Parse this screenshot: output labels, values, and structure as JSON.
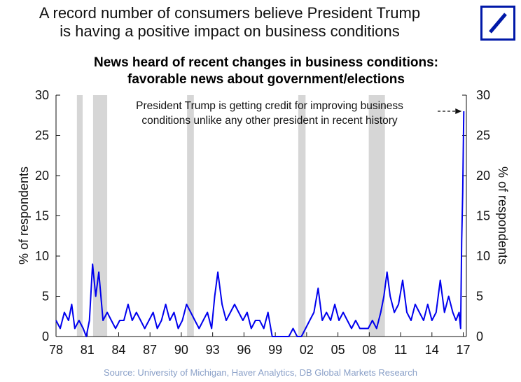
{
  "headline": {
    "line1": "A record number of consumers believe President Trump",
    "line2": "is having a positive impact on business conditions"
  },
  "logo": {
    "name": "Deutsche Bank logo",
    "color": "#0018A8"
  },
  "chart_data": {
    "type": "line",
    "title_line1": "News heard of recent changes in business conditions:",
    "title_line2": "favorable news about government/elections",
    "ylabel_left": "% of respondents",
    "ylabel_right": "% of respondents",
    "ylim": [
      0,
      30
    ],
    "y_ticks": [
      "0",
      "5",
      "10",
      "15",
      "20",
      "25",
      "30"
    ],
    "xlim": [
      1978,
      2017.3
    ],
    "x_ticks": [
      {
        "label": "78",
        "year": 1978
      },
      {
        "label": "81",
        "year": 1981
      },
      {
        "label": "84",
        "year": 1984
      },
      {
        "label": "87",
        "year": 1987
      },
      {
        "label": "90",
        "year": 1990
      },
      {
        "label": "93",
        "year": 1993
      },
      {
        "label": "96",
        "year": 1996
      },
      {
        "label": "99",
        "year": 1999
      },
      {
        "label": "02",
        "year": 2002
      },
      {
        "label": "05",
        "year": 2005
      },
      {
        "label": "08",
        "year": 2008
      },
      {
        "label": "11",
        "year": 2011
      },
      {
        "label": "14",
        "year": 2014
      },
      {
        "label": "17",
        "year": 2017
      }
    ],
    "recessions": [
      {
        "start": 1980.0,
        "end": 1980.55
      },
      {
        "start": 1981.55,
        "end": 1982.9
      },
      {
        "start": 1990.55,
        "end": 1991.2
      },
      {
        "start": 2001.2,
        "end": 2001.9
      },
      {
        "start": 2007.95,
        "end": 2009.5
      }
    ],
    "series": [
      {
        "name": "Favorable news about government/elections",
        "color": "#0000ee",
        "x": [
          1978.0,
          1978.4,
          1978.8,
          1979.2,
          1979.5,
          1979.8,
          1980.2,
          1980.6,
          1980.9,
          1981.2,
          1981.5,
          1981.8,
          1982.1,
          1982.5,
          1982.9,
          1983.3,
          1983.7,
          1984.1,
          1984.5,
          1984.9,
          1985.3,
          1985.7,
          1986.1,
          1986.5,
          1986.9,
          1987.3,
          1987.7,
          1988.1,
          1988.5,
          1988.9,
          1989.3,
          1989.7,
          1990.1,
          1990.5,
          1990.9,
          1991.3,
          1991.7,
          1992.1,
          1992.5,
          1992.9,
          1993.2,
          1993.5,
          1993.9,
          1994.3,
          1994.7,
          1995.1,
          1995.5,
          1995.9,
          1996.3,
          1996.7,
          1997.1,
          1997.5,
          1997.9,
          1998.3,
          1998.7,
          1999.1,
          1999.5,
          1999.9,
          2000.3,
          2000.7,
          2001.1,
          2001.5,
          2001.9,
          2002.3,
          2002.7,
          2003.1,
          2003.5,
          2003.9,
          2004.3,
          2004.7,
          2005.1,
          2005.5,
          2005.9,
          2006.3,
          2006.7,
          2007.1,
          2007.5,
          2007.9,
          2008.3,
          2008.7,
          2009.1,
          2009.4,
          2009.7,
          2010.0,
          2010.4,
          2010.8,
          2011.2,
          2011.6,
          2012.0,
          2012.4,
          2012.8,
          2013.2,
          2013.6,
          2014.0,
          2014.4,
          2014.8,
          2015.2,
          2015.6,
          2016.0,
          2016.3,
          2016.6,
          2016.75,
          2016.85,
          2016.95,
          2017.05
        ],
        "values": [
          2,
          1,
          3,
          2,
          4,
          1,
          2,
          1,
          0,
          2,
          9,
          5,
          8,
          2,
          3,
          2,
          1,
          2,
          2,
          4,
          2,
          3,
          2,
          1,
          2,
          3,
          1,
          2,
          4,
          2,
          3,
          1,
          2,
          4,
          3,
          2,
          1,
          2,
          3,
          1,
          5,
          8,
          4,
          2,
          3,
          4,
          3,
          2,
          3,
          1,
          2,
          2,
          1,
          3,
          0,
          0,
          0,
          0,
          0,
          1,
          0,
          0,
          1,
          2,
          3,
          6,
          2,
          3,
          2,
          4,
          2,
          3,
          2,
          1,
          2,
          1,
          1,
          1,
          2,
          1,
          3,
          5,
          8,
          5,
          3,
          4,
          7,
          3,
          2,
          4,
          3,
          2,
          4,
          2,
          3,
          7,
          3,
          5,
          3,
          2,
          3,
          1,
          12,
          18,
          28
        ]
      }
    ],
    "annotation_line1": "President Trump is getting credit for improving business",
    "annotation_line2": "conditions unlike any other president in recent history",
    "annotation_target": {
      "year": 2017.05,
      "value": 28
    }
  },
  "source": "Source: University of Michigan, Haver Analytics, DB Global Markets Research"
}
